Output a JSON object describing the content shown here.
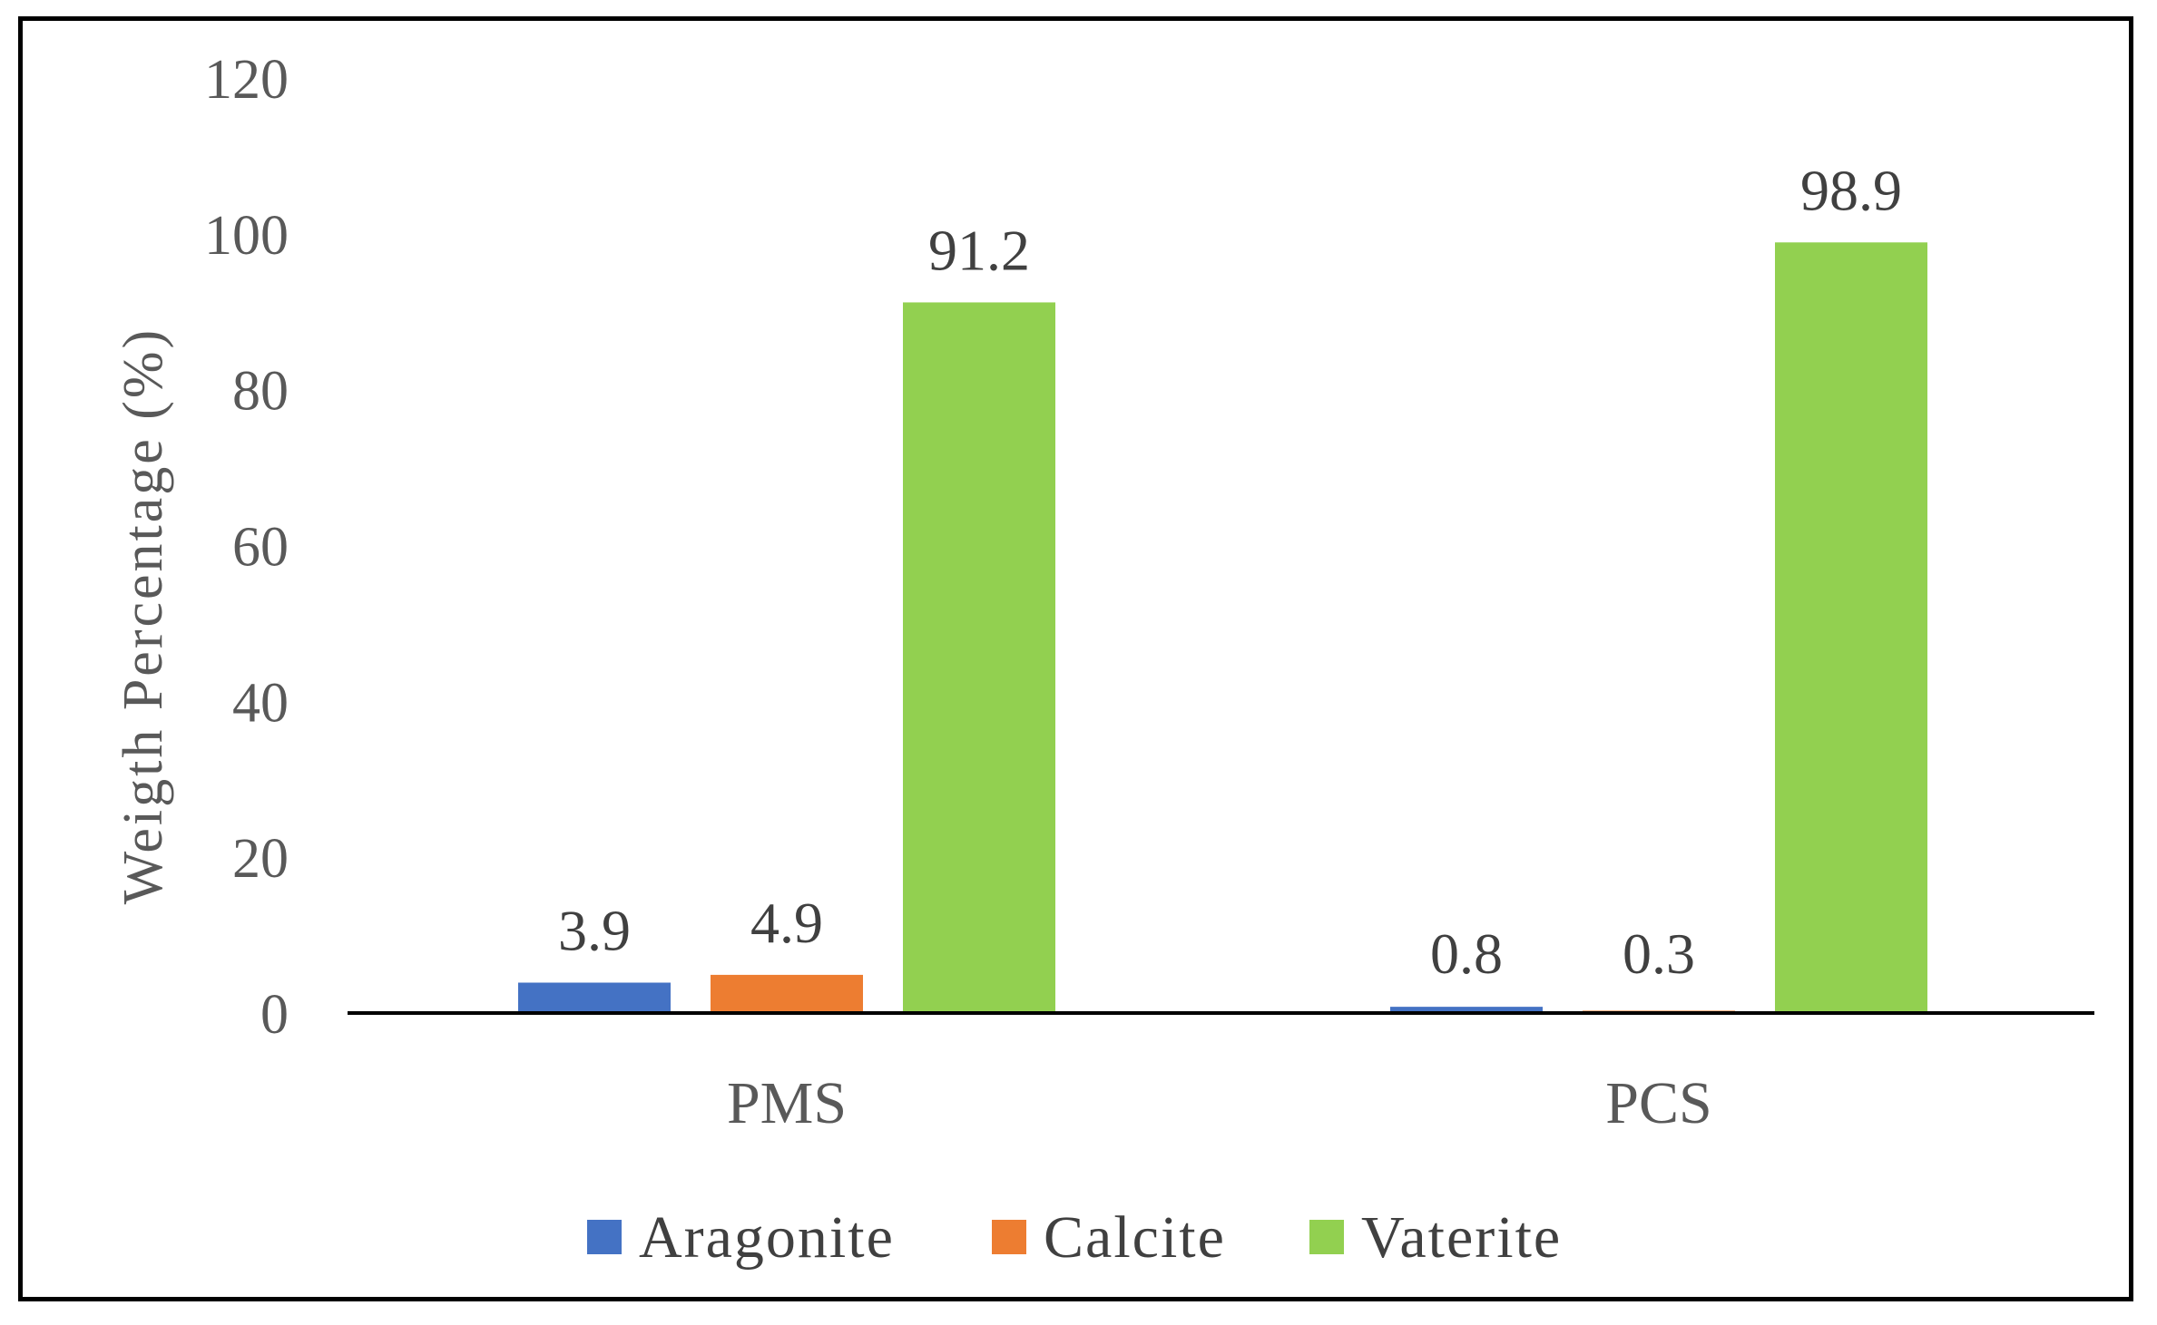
{
  "chart_data": {
    "type": "bar",
    "title": "",
    "xlabel": "",
    "ylabel": "Weigth  Percentage  (%)",
    "ylim": [
      0,
      120
    ],
    "yticks": [
      0,
      20,
      40,
      60,
      80,
      100,
      120
    ],
    "grid": false,
    "legend_position": "bottom",
    "categories": [
      "PMS",
      "PCS"
    ],
    "series": [
      {
        "name": "Aragonite",
        "color": "#4472C4",
        "values": [
          3.9,
          0.8
        ],
        "labels": [
          "3.9",
          "0.8"
        ]
      },
      {
        "name": "Calcite",
        "color": "#ED7D31",
        "values": [
          4.9,
          0.3
        ],
        "labels": [
          "4.9",
          "0.3"
        ]
      },
      {
        "name": "Vaterite",
        "color": "#92D050",
        "values": [
          91.2,
          98.9
        ],
        "labels": [
          "91.2",
          "98.9"
        ]
      }
    ]
  }
}
